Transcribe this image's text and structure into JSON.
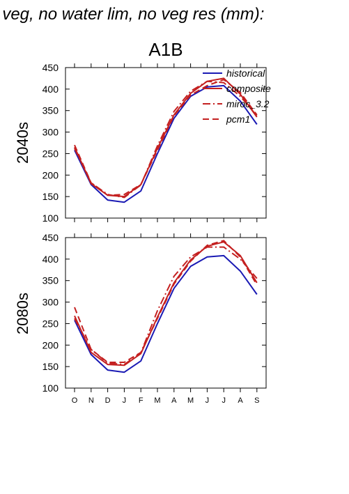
{
  "figure": {
    "title": "f veg, no water lim, no veg res (mm):",
    "panel_title": "A1B"
  },
  "colors": {
    "historical": "#1a1ab4",
    "scenario": "#c42020"
  },
  "legend": {
    "placement": "top-right",
    "entries": [
      {
        "label": "historical",
        "style": "solid",
        "color": "#1a1ab4"
      },
      {
        "label": "composite",
        "style": "solid",
        "color": "#c42020"
      },
      {
        "label": "miroc_3.2",
        "style": "dashdot",
        "color": "#c42020"
      },
      {
        "label": "pcm1",
        "style": "dashed",
        "color": "#c42020"
      }
    ]
  },
  "chart_data": [
    {
      "type": "line",
      "row_label": "2040s",
      "categories": [
        "O",
        "N",
        "D",
        "J",
        "F",
        "M",
        "A",
        "M",
        "J",
        "J",
        "A",
        "S"
      ],
      "ylim": [
        100,
        450
      ],
      "yticks": [
        100,
        150,
        200,
        250,
        300,
        350,
        400,
        450
      ],
      "grid": false,
      "series": [
        {
          "name": "historical",
          "style": "solid",
          "values": [
            258,
            178,
            142,
            137,
            163,
            250,
            332,
            383,
            405,
            408,
            372,
            318
          ]
        },
        {
          "name": "composite",
          "style": "solid",
          "values": [
            265,
            180,
            153,
            150,
            178,
            262,
            340,
            390,
            418,
            425,
            388,
            335
          ]
        },
        {
          "name": "miroc_3.2",
          "style": "dashdot",
          "values": [
            262,
            182,
            155,
            148,
            177,
            268,
            348,
            395,
            418,
            415,
            383,
            338
          ]
        },
        {
          "name": "pcm1",
          "style": "dashed",
          "values": [
            270,
            182,
            153,
            155,
            178,
            258,
            338,
            386,
            408,
            422,
            392,
            340
          ]
        }
      ]
    },
    {
      "type": "line",
      "row_label": "2080s",
      "categories": [
        "O",
        "N",
        "D",
        "J",
        "F",
        "M",
        "A",
        "M",
        "J",
        "J",
        "A",
        "S"
      ],
      "ylim": [
        100,
        450
      ],
      "yticks": [
        100,
        150,
        200,
        250,
        300,
        350,
        400,
        450
      ],
      "grid": false,
      "series": [
        {
          "name": "historical",
          "style": "solid",
          "values": [
            258,
            178,
            142,
            137,
            163,
            250,
            332,
            383,
            405,
            408,
            372,
            318
          ]
        },
        {
          "name": "composite",
          "style": "solid",
          "values": [
            268,
            183,
            155,
            153,
            180,
            265,
            345,
            398,
            430,
            440,
            408,
            345
          ]
        },
        {
          "name": "miroc_3.2",
          "style": "dashdot",
          "values": [
            262,
            190,
            158,
            155,
            182,
            280,
            360,
            405,
            428,
            428,
            400,
            355
          ]
        },
        {
          "name": "pcm1",
          "style": "dashed",
          "values": [
            288,
            190,
            160,
            160,
            183,
            262,
            342,
            395,
            432,
            443,
            405,
            340
          ]
        }
      ]
    }
  ]
}
